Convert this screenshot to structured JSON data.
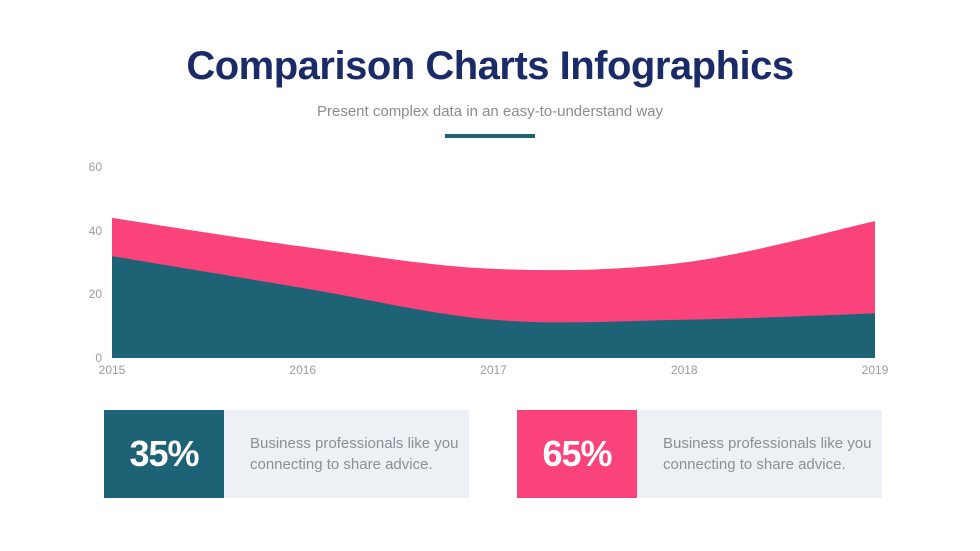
{
  "header": {
    "title": "Comparison Charts Infographics",
    "subtitle": "Present complex data in an easy-to-understand way"
  },
  "colors": {
    "title_navy": "#1B2B68",
    "teal": "#1D6375",
    "pink": "#F9437A",
    "card_panel": "#EDF0F5",
    "axis_label_gray": "#9B9B9B",
    "subtitle_gray": "#8C8C8C",
    "description_gray": "#8B9097",
    "divider_teal": "#1D6372"
  },
  "chart_data": {
    "type": "area",
    "stacked": true,
    "title": "",
    "xlabel": "",
    "ylabel": "",
    "x": [
      "2015",
      "2016",
      "2017",
      "2018",
      "2019"
    ],
    "series": [
      {
        "name": "teal-series",
        "color": "#1D6375",
        "values": [
          32,
          22,
          12,
          12,
          14
        ]
      },
      {
        "name": "pink-series",
        "color": "#F9437A",
        "values": [
          12,
          13,
          16,
          18,
          29
        ]
      }
    ],
    "stacked_totals": [
      44,
      35,
      28,
      30,
      43
    ],
    "ylim": [
      0,
      60
    ],
    "yticks": [
      0,
      20,
      40,
      60
    ],
    "grid": false,
    "legend": "none"
  },
  "cards": [
    {
      "percent": "35%",
      "accent": "#1D6375",
      "description": "Business professionals like you connecting to share advice."
    },
    {
      "percent": "65%",
      "accent": "#F9437A",
      "description": "Business professionals like you connecting to share advice."
    }
  ]
}
